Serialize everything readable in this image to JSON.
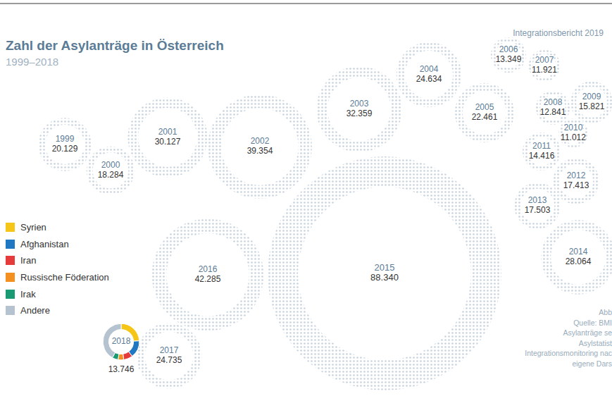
{
  "chart_data": {
    "type": "bubble",
    "title": "Zahl der Asylanträge in Österreich",
    "subtitle": "1999–2018",
    "categories": [
      "1999",
      "2000",
      "2001",
      "2002",
      "2003",
      "2004",
      "2005",
      "2006",
      "2007",
      "2008",
      "2009",
      "2010",
      "2011",
      "2012",
      "2013",
      "2014",
      "2015",
      "2016",
      "2017",
      "2018"
    ],
    "values": [
      20129,
      18284,
      30127,
      39354,
      32359,
      24634,
      22461,
      13349,
      11921,
      12841,
      15821,
      11012,
      14416,
      17413,
      17503,
      28064,
      88340,
      42285,
      24735,
      13746
    ],
    "value_labels": [
      "20.129",
      "18.284",
      "30.127",
      "39.354",
      "32.359",
      "24.634",
      "22.461",
      "13.349",
      "11.921",
      "12.841",
      "15.821",
      "11.012",
      "14.416",
      "17.413",
      "17.503",
      "28.064",
      "88.340",
      "42.285",
      "24.735",
      "13.746"
    ],
    "color": "#c9d3dd",
    "legend": "left",
    "breakdown": {
      "category": "2018",
      "type": "pie",
      "categories": [
        "Syrien",
        "Afghanistan",
        "Iran",
        "Russische Föderation",
        "Irak",
        "Andere"
      ],
      "values": [
        3329,
        2120,
        1107,
        699,
        716,
        5775
      ],
      "colors": [
        "#f5c518",
        "#1f78c1",
        "#e63b3b",
        "#f39020",
        "#1a9a73",
        "#b4c3cf"
      ]
    },
    "annotations": [
      "Integrationsbericht 2019"
    ],
    "source_lines": [
      "Abb",
      "Quelle: BMI",
      "Asylanträge se",
      "Asylstatist",
      "Integrationsmonitoring nac",
      "eigene Dars"
    ]
  }
}
